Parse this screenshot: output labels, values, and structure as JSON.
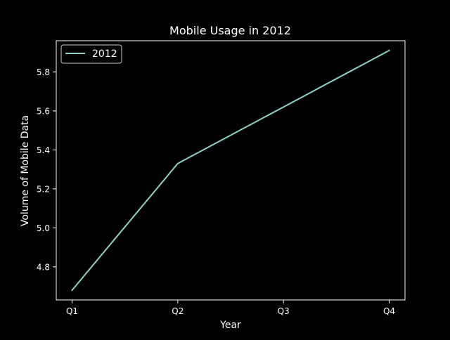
{
  "chart_data": {
    "type": "line",
    "title": "Mobile Usage in 2012",
    "xlabel": "Year",
    "ylabel": "Volume of Mobile Data",
    "categories": [
      "Q1",
      "Q2",
      "Q3",
      "Q4"
    ],
    "series": [
      {
        "name": "2012",
        "values": [
          4.68,
          5.33,
          5.62,
          5.91
        ],
        "color": "#8dd3c7"
      }
    ],
    "ylim": [
      4.63,
      5.96
    ],
    "yticks": [
      4.8,
      5.0,
      5.2,
      5.4,
      5.6,
      5.8
    ],
    "ytick_labels": [
      "4.8",
      "5.0",
      "5.2",
      "5.4",
      "5.6",
      "5.8"
    ],
    "grid": false,
    "legend": {
      "position": "top-left"
    },
    "colors": {
      "background": "#000000",
      "axes": "#ffffff",
      "text": "#ffffff"
    }
  }
}
